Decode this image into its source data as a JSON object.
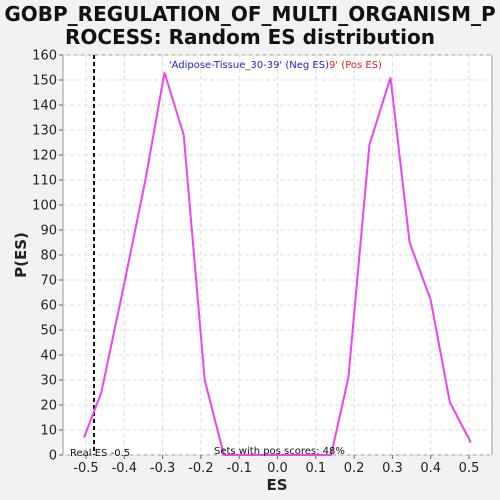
{
  "chart_data": {
    "type": "line",
    "title_line1": "GOBP_REGULATION_OF_MULTI_ORGANISM_P",
    "title_line2": "ROCESS: Random ES distribution",
    "xlabel": "ES",
    "ylabel": "P(ES)",
    "xlim": [
      -0.56,
      0.56
    ],
    "ylim": [
      0,
      160
    ],
    "xticks": [
      "-0.5",
      "-0.4",
      "-0.3",
      "-0.2",
      "-0.1",
      "0.0",
      "0.1",
      "0.2",
      "0.3",
      "0.4",
      "0.5"
    ],
    "xtick_values": [
      -0.5,
      -0.4,
      -0.3,
      -0.2,
      -0.1,
      0.0,
      0.1,
      0.2,
      0.3,
      0.4,
      0.5
    ],
    "yticks": [
      0,
      10,
      20,
      30,
      40,
      50,
      60,
      70,
      80,
      90,
      100,
      110,
      120,
      130,
      140,
      150,
      160
    ],
    "grid": true,
    "legend_neg": "'Adipose-Tissue_30-39' (Neg ES)",
    "legend_pos": "9' (Pos ES)",
    "legend_placement": "top-center",
    "real_es_label": "Real ES -0.5",
    "real_es_value": -0.479,
    "pos_scores_label": "Sets with pos scores: 48%",
    "line_color": "#ee44ee",
    "neg_color": "#2222cc",
    "pos_color": "#dd2222",
    "series": [
      {
        "x": [
          -0.505,
          -0.46,
          -0.405,
          -0.345,
          -0.295,
          -0.245,
          -0.19,
          -0.14,
          -0.09,
          0.05,
          0.14,
          0.185,
          0.24,
          0.295,
          0.345,
          0.4,
          0.45,
          0.505
        ],
        "y": [
          7,
          25,
          65,
          110,
          153,
          128,
          30,
          0,
          0,
          0,
          0,
          31,
          124,
          151,
          85,
          62,
          21,
          5
        ]
      }
    ]
  }
}
